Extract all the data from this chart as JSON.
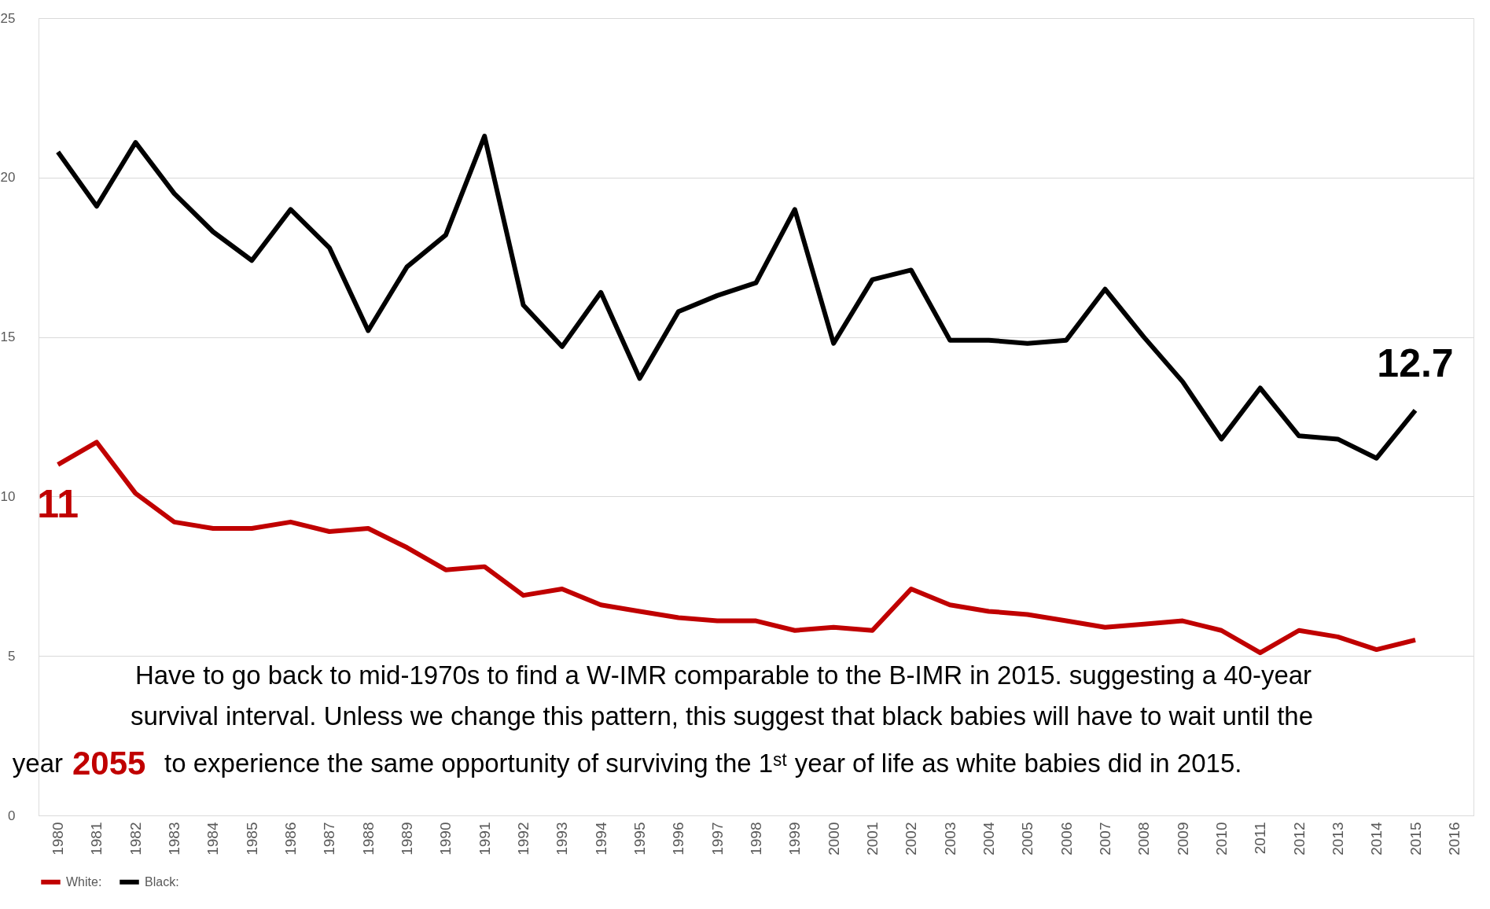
{
  "chart_data": {
    "type": "line",
    "categories": [
      "1980",
      "1981",
      "1982",
      "1983",
      "1984",
      "1985",
      "1986",
      "1987",
      "1988",
      "1989",
      "1990",
      "1991",
      "1992",
      "1993",
      "1994",
      "1995",
      "1996",
      "1997",
      "1998",
      "1999",
      "2000",
      "2001",
      "2002",
      "2003",
      "2004",
      "2005",
      "2006",
      "2007",
      "2008",
      "2009",
      "2010",
      "2011",
      "2012",
      "2013",
      "2014",
      "2015",
      "2016"
    ],
    "series": [
      {
        "name": "White:",
        "color": "#c00000",
        "values": [
          11.0,
          11.7,
          10.1,
          9.2,
          9.0,
          9.0,
          9.2,
          8.9,
          9.0,
          8.4,
          7.7,
          7.8,
          6.9,
          7.1,
          6.6,
          6.4,
          6.2,
          6.1,
          6.1,
          5.8,
          5.9,
          5.8,
          7.1,
          6.6,
          6.4,
          6.3,
          6.1,
          5.9,
          6.0,
          6.1,
          5.8,
          5.1,
          5.8,
          5.6,
          5.2,
          5.5,
          null
        ]
      },
      {
        "name": "Black:",
        "color": "#000000",
        "values": [
          20.8,
          19.1,
          21.1,
          19.5,
          18.3,
          17.4,
          19.0,
          17.8,
          15.2,
          17.2,
          18.2,
          21.3,
          16.0,
          14.7,
          16.4,
          13.7,
          15.8,
          16.3,
          16.7,
          19.0,
          14.8,
          16.8,
          17.1,
          14.9,
          14.9,
          14.8,
          14.9,
          16.5,
          15.0,
          13.6,
          11.8,
          13.4,
          11.9,
          11.8,
          11.2,
          12.7,
          null
        ]
      }
    ],
    "ylim": [
      0,
      25
    ],
    "yticks": [
      0,
      5,
      10,
      15,
      20,
      25
    ],
    "grid": "y",
    "legend": "bottom",
    "annotations": [
      {
        "text": "11",
        "x": "1980",
        "y": 11
      },
      {
        "text": "12.7",
        "x": "2015",
        "y": 12.7
      },
      "Have to go back to mid-1970s to find a W-IMR comparable to the B-IMR in 2015. suggesting a 40-year",
      "survival interval.  Unless we change this pattern, this suggest that black babies will have to wait until the",
      "year",
      "2055",
      "to experience the same opportunity of surviving the 1ˢᵗ year of life as white babies did in 2015."
    ]
  }
}
